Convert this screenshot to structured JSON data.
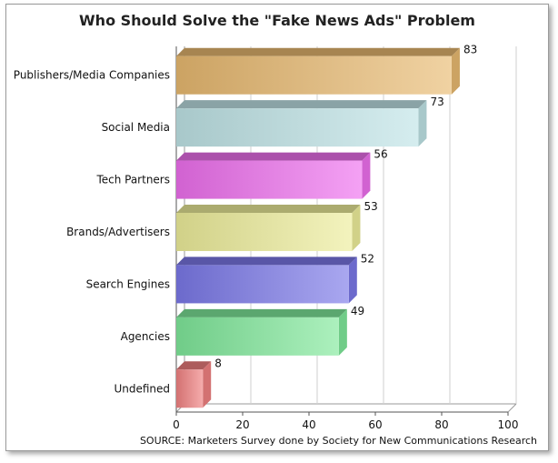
{
  "chart_data": {
    "type": "bar",
    "orientation": "horizontal",
    "title": "Who Should Solve the \"Fake News Ads\" Problem",
    "categories": [
      "Publishers/Media Companies",
      "Social Media",
      "Tech Partners",
      "Brands/Advertisers",
      "Search Engines",
      "Agencies",
      "Undefined"
    ],
    "values": [
      83,
      73,
      56,
      53,
      52,
      49,
      8
    ],
    "xlim": [
      0,
      100
    ],
    "xticks": [
      0,
      20,
      40,
      60,
      80,
      100
    ],
    "grid": true,
    "colors": [
      "#e8b970",
      "#bfe3e6",
      "#ee6fee",
      "#eded9a",
      "#7b78e8",
      "#7fe89a",
      "#f08080"
    ],
    "source": "SOURCE:  Marketers Survey done by Society for New Communications Research"
  }
}
